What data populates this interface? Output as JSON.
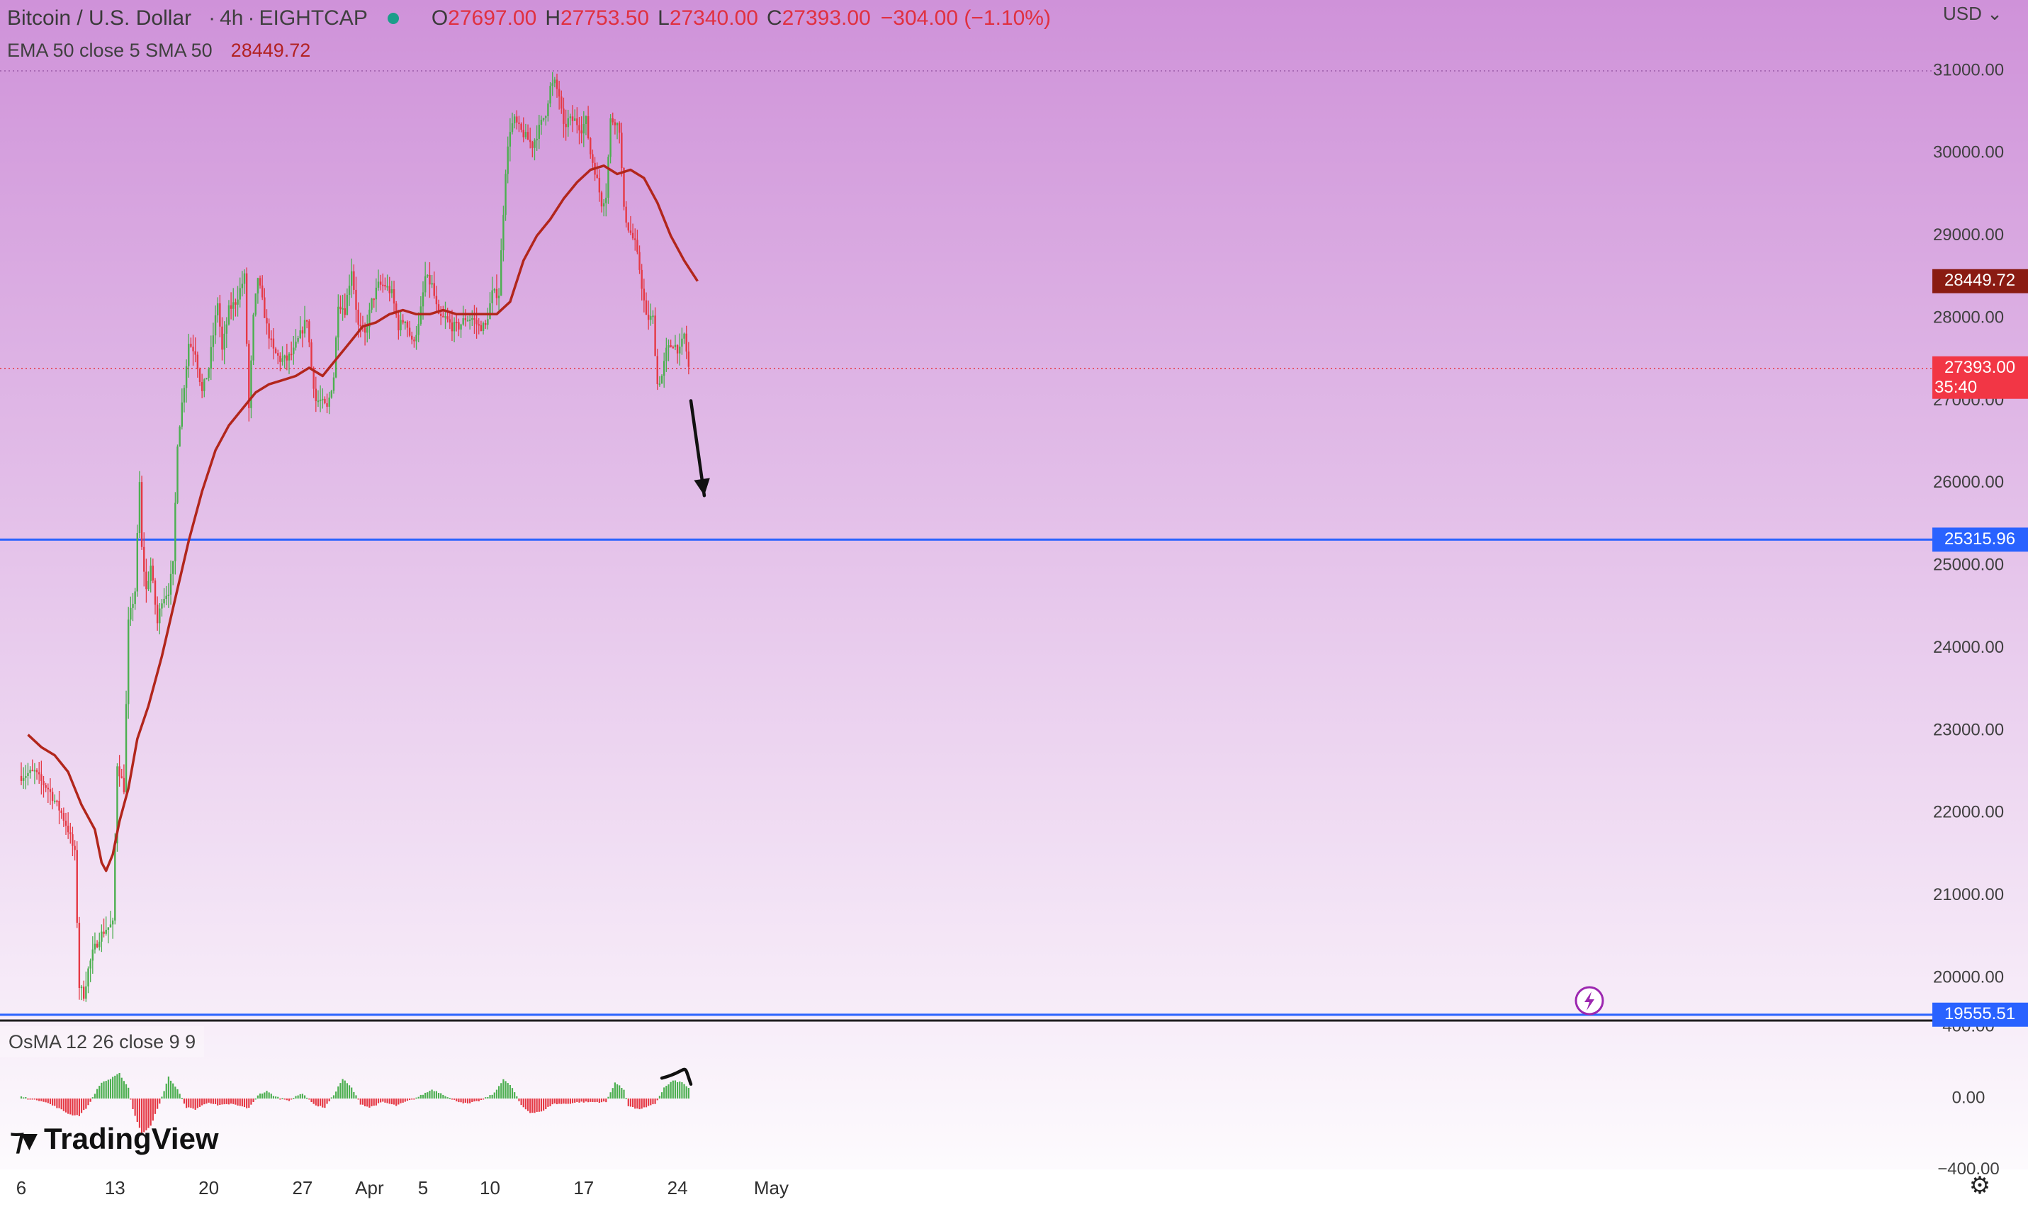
{
  "header": {
    "symbol": "Bitcoin / U.S. Dollar",
    "timeframe": "4h",
    "exchange": "EIGHTCAP",
    "separator": "·",
    "open_label": "O",
    "open": "27697.00",
    "high_label": "H",
    "high": "27753.50",
    "low_label": "L",
    "low": "27340.00",
    "close_label": "C",
    "close": "27393.00",
    "change": "−304.00 (−1.10%)"
  },
  "indicator": {
    "label": "EMA 50 close 5 SMA 50",
    "value": "28449.72"
  },
  "osma_label": "OsMA 12 26 close 9 9",
  "currency": "USD",
  "logo_text": "TradingView",
  "icons": {
    "settings": "gear-icon",
    "alert": "lightning-alert-icon",
    "logo": "tradingview-logo-icon"
  },
  "colors": {
    "bg_top": "#cf92d9",
    "bg_bottom": "#ffffff",
    "up": "#4caf50",
    "down": "#e53945",
    "ema": "#b2261c",
    "level": "#2962ff",
    "last": "#f23645",
    "ema_tag": "#8a1b12"
  },
  "chart_data": [
    {
      "type": "candlestick",
      "title": "Bitcoin / U.S. Dollar · 4h · EIGHTCAP",
      "ylim": [
        19300,
        31600
      ],
      "y_ticks": [
        20000,
        21000,
        22000,
        23000,
        24000,
        25000,
        26000,
        27000,
        28000,
        29000,
        30000,
        31000
      ],
      "y_tick_labels": [
        "20000.00",
        "21000.00",
        "22000.00",
        "23000.00",
        "24000.00",
        "25000.00",
        "26000.00",
        "27000.00",
        "28000.00",
        "29000.00",
        "30000.00",
        "31000.00"
      ],
      "x_ticks": [
        {
          "label": "6",
          "bar": 0
        },
        {
          "label": "13",
          "bar": 42
        },
        {
          "label": "20",
          "bar": 84
        },
        {
          "label": "27",
          "bar": 126
        },
        {
          "label": "Apr",
          "bar": 156
        },
        {
          "label": "5",
          "bar": 180
        },
        {
          "label": "10",
          "bar": 210
        },
        {
          "label": "17",
          "bar": 252
        },
        {
          "label": "24",
          "bar": 294
        },
        {
          "label": "May",
          "bar": 336
        }
      ],
      "anchors": [
        [
          0,
          22450
        ],
        [
          3,
          22480
        ],
        [
          6,
          22500
        ],
        [
          9,
          22380
        ],
        [
          12,
          22300
        ],
        [
          15,
          22150
        ],
        [
          18,
          22000
        ],
        [
          21,
          21800
        ],
        [
          24,
          21500
        ],
        [
          26,
          19900
        ],
        [
          28,
          19800
        ],
        [
          30,
          20100
        ],
        [
          32,
          20300
        ],
        [
          35,
          20500
        ],
        [
          38,
          20600
        ],
        [
          41,
          20650
        ],
        [
          43,
          22600
        ],
        [
          46,
          22300
        ],
        [
          48,
          24300
        ],
        [
          51,
          24700
        ],
        [
          53,
          26000
        ],
        [
          54,
          25200
        ],
        [
          56,
          24700
        ],
        [
          58,
          25000
        ],
        [
          61,
          24300
        ],
        [
          63,
          24600
        ],
        [
          66,
          24700
        ],
        [
          68,
          25000
        ],
        [
          70,
          26500
        ],
        [
          73,
          27200
        ],
        [
          75,
          27700
        ],
        [
          78,
          27600
        ],
        [
          81,
          27100
        ],
        [
          84,
          27400
        ],
        [
          86,
          27800
        ],
        [
          88,
          28200
        ],
        [
          90,
          27600
        ],
        [
          93,
          28100
        ],
        [
          96,
          28200
        ],
        [
          100,
          28500
        ],
        [
          102,
          26900
        ],
        [
          104,
          28000
        ],
        [
          106,
          28500
        ],
        [
          108,
          28200
        ],
        [
          110,
          27900
        ],
        [
          113,
          27600
        ],
        [
          116,
          27500
        ],
        [
          119,
          27500
        ],
        [
          122,
          27600
        ],
        [
          125,
          27800
        ],
        [
          128,
          28000
        ],
        [
          130,
          27400
        ],
        [
          132,
          27000
        ],
        [
          134,
          27000
        ],
        [
          137,
          26900
        ],
        [
          140,
          27300
        ],
        [
          142,
          28200
        ],
        [
          145,
          28100
        ],
        [
          148,
          28600
        ],
        [
          151,
          27900
        ],
        [
          154,
          27800
        ],
        [
          157,
          28200
        ],
        [
          160,
          28400
        ],
        [
          163,
          28400
        ],
        [
          166,
          28300
        ],
        [
          169,
          27900
        ],
        [
          172,
          28000
        ],
        [
          175,
          27700
        ],
        [
          178,
          27900
        ],
        [
          181,
          28500
        ],
        [
          184,
          28400
        ],
        [
          187,
          28000
        ],
        [
          190,
          28000
        ],
        [
          193,
          27900
        ],
        [
          196,
          27900
        ],
        [
          199,
          28000
        ],
        [
          202,
          28000
        ],
        [
          205,
          27900
        ],
        [
          208,
          27900
        ],
        [
          211,
          28300
        ],
        [
          214,
          28300
        ],
        [
          217,
          29800
        ],
        [
          219,
          30300
        ],
        [
          221,
          30400
        ],
        [
          223,
          30300
        ],
        [
          226,
          30200
        ],
        [
          229,
          30100
        ],
        [
          232,
          30300
        ],
        [
          235,
          30500
        ],
        [
          237,
          30800
        ],
        [
          239,
          30850
        ],
        [
          241,
          30700
        ],
        [
          243,
          30300
        ],
        [
          245,
          30400
        ],
        [
          248,
          30400
        ],
        [
          251,
          30300
        ],
        [
          253,
          30400
        ],
        [
          255,
          30000
        ],
        [
          257,
          29800
        ],
        [
          260,
          29400
        ],
        [
          262,
          29500
        ],
        [
          264,
          30400
        ],
        [
          266,
          30400
        ],
        [
          268,
          30300
        ],
        [
          270,
          29300
        ],
        [
          272,
          29100
        ],
        [
          275,
          28900
        ],
        [
          277,
          28600
        ],
        [
          280,
          28000
        ],
        [
          283,
          28000
        ],
        [
          285,
          27200
        ],
        [
          287,
          27300
        ],
        [
          289,
          27600
        ],
        [
          292,
          27700
        ],
        [
          295,
          27600
        ],
        [
          297,
          27800
        ],
        [
          299,
          27400
        ]
      ],
      "ema_line": [
        [
          3,
          22950
        ],
        [
          9,
          22800
        ],
        [
          15,
          22700
        ],
        [
          21,
          22500
        ],
        [
          27,
          22100
        ],
        [
          33,
          21800
        ],
        [
          36,
          21400
        ],
        [
          38,
          21300
        ],
        [
          41,
          21500
        ],
        [
          44,
          21900
        ],
        [
          48,
          22300
        ],
        [
          52,
          22900
        ],
        [
          57,
          23300
        ],
        [
          63,
          23900
        ],
        [
          69,
          24600
        ],
        [
          75,
          25300
        ],
        [
          81,
          25900
        ],
        [
          87,
          26400
        ],
        [
          93,
          26700
        ],
        [
          99,
          26900
        ],
        [
          105,
          27100
        ],
        [
          111,
          27200
        ],
        [
          117,
          27250
        ],
        [
          123,
          27300
        ],
        [
          129,
          27400
        ],
        [
          135,
          27300
        ],
        [
          141,
          27500
        ],
        [
          147,
          27700
        ],
        [
          153,
          27900
        ],
        [
          159,
          27950
        ],
        [
          165,
          28050
        ],
        [
          171,
          28100
        ],
        [
          177,
          28050
        ],
        [
          183,
          28050
        ],
        [
          189,
          28100
        ],
        [
          195,
          28050
        ],
        [
          201,
          28050
        ],
        [
          207,
          28050
        ],
        [
          213,
          28050
        ],
        [
          219,
          28200
        ],
        [
          225,
          28700
        ],
        [
          231,
          29000
        ],
        [
          237,
          29200
        ],
        [
          243,
          29450
        ],
        [
          249,
          29650
        ],
        [
          255,
          29800
        ],
        [
          261,
          29850
        ],
        [
          267,
          29750
        ],
        [
          273,
          29800
        ],
        [
          279,
          29700
        ],
        [
          285,
          29400
        ],
        [
          291,
          29000
        ],
        [
          297,
          28700
        ],
        [
          303,
          28450
        ]
      ],
      "levels": [
        25315.96,
        19555.51
      ],
      "level_labels": [
        "25315.96",
        "19555.51"
      ],
      "ema_value": 28449.72,
      "ema_label": "28449.72",
      "last_price": 27393.0,
      "last_price_label": "27393.00",
      "countdown": "35:40",
      "arrow_from": [
        300,
        27000
      ],
      "arrow_to": [
        306,
        25850
      ]
    },
    {
      "type": "histogram",
      "title": "OsMA 12 26 close 9 9",
      "ylim": [
        -430,
        430
      ],
      "y_ticks": [
        400,
        0,
        -400
      ],
      "y_tick_labels": [
        "400.00",
        "0.00",
        "−400.00"
      ],
      "anchors": [
        [
          0,
          10
        ],
        [
          10,
          -15
        ],
        [
          16,
          -50
        ],
        [
          22,
          -90
        ],
        [
          26,
          -95
        ],
        [
          30,
          -40
        ],
        [
          33,
          30
        ],
        [
          36,
          90
        ],
        [
          40,
          110
        ],
        [
          44,
          140
        ],
        [
          48,
          60
        ],
        [
          50,
          -60
        ],
        [
          54,
          -200
        ],
        [
          58,
          -150
        ],
        [
          62,
          -30
        ],
        [
          66,
          120
        ],
        [
          70,
          50
        ],
        [
          74,
          -50
        ],
        [
          78,
          -60
        ],
        [
          84,
          -20
        ],
        [
          88,
          -40
        ],
        [
          94,
          -30
        ],
        [
          102,
          -55
        ],
        [
          106,
          20
        ],
        [
          110,
          40
        ],
        [
          114,
          10
        ],
        [
          120,
          -10
        ],
        [
          126,
          30
        ],
        [
          132,
          -40
        ],
        [
          136,
          -50
        ],
        [
          140,
          20
        ],
        [
          144,
          110
        ],
        [
          148,
          60
        ],
        [
          152,
          -30
        ],
        [
          156,
          -50
        ],
        [
          162,
          -20
        ],
        [
          168,
          -40
        ],
        [
          172,
          -20
        ],
        [
          178,
          10
        ],
        [
          184,
          50
        ],
        [
          188,
          30
        ],
        [
          194,
          -10
        ],
        [
          200,
          -30
        ],
        [
          206,
          -10
        ],
        [
          212,
          30
        ],
        [
          216,
          110
        ],
        [
          220,
          60
        ],
        [
          224,
          -40
        ],
        [
          228,
          -80
        ],
        [
          234,
          -70
        ],
        [
          238,
          -30
        ],
        [
          244,
          -30
        ],
        [
          250,
          -20
        ],
        [
          256,
          -20
        ],
        [
          262,
          -20
        ],
        [
          266,
          90
        ],
        [
          270,
          50
        ],
        [
          272,
          -40
        ],
        [
          276,
          -60
        ],
        [
          280,
          -50
        ],
        [
          284,
          -30
        ],
        [
          288,
          60
        ],
        [
          292,
          100
        ],
        [
          296,
          90
        ],
        [
          299,
          60
        ]
      ],
      "drawing_from": [
        287,
        130
      ],
      "drawing_to": [
        300,
        120
      ]
    }
  ]
}
